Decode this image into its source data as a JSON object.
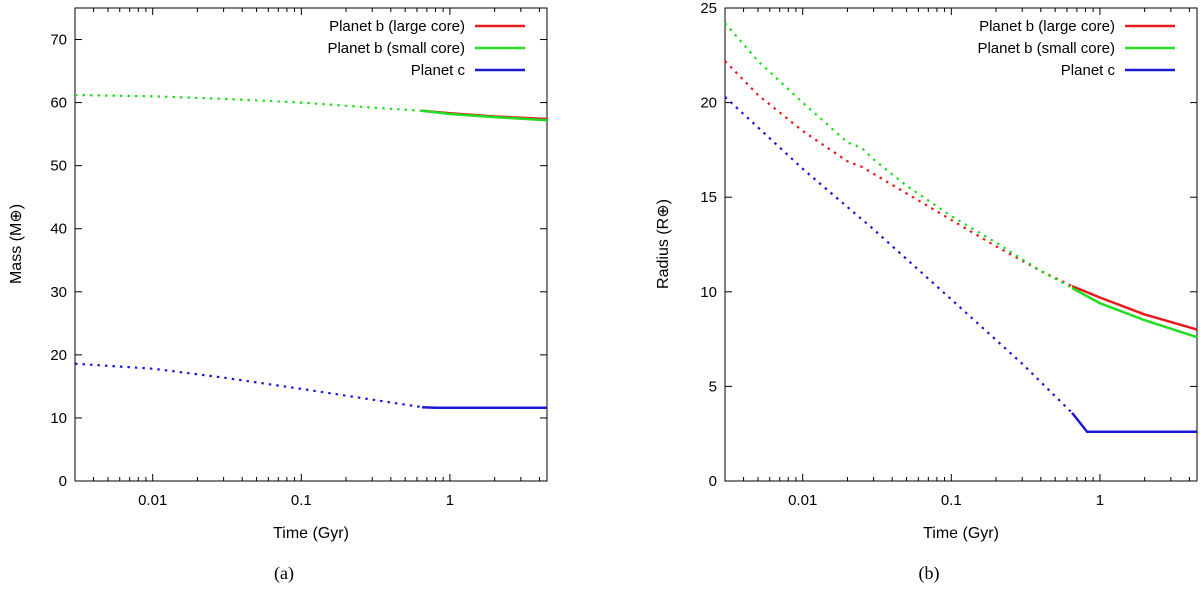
{
  "chart_data": [
    {
      "type": "line",
      "panel": "a",
      "caption": "(a)",
      "xlabel": "Time (Gyr)",
      "ylabel": "Mass (M⊕)",
      "xscale": "log",
      "xlim": [
        0.003,
        4.5
      ],
      "ylim": [
        0,
        75
      ],
      "xticks": [
        {
          "value": 0.01,
          "label": "0.01"
        },
        {
          "value": 0.1,
          "label": "0.1"
        },
        {
          "value": 1,
          "label": "1"
        }
      ],
      "yticks": [
        0,
        10,
        20,
        30,
        40,
        50,
        60,
        70
      ],
      "legend_position": "top-right",
      "series": [
        {
          "name": "Planet b (large core)",
          "color": "#e41a1c",
          "dotted": [],
          "solid": [
            [
              0.65,
              58.7
            ],
            [
              1,
              58.3
            ],
            [
              2,
              57.8
            ],
            [
              4.5,
              57.4
            ]
          ]
        },
        {
          "name": "Planet b (small core)",
          "color": "#22dd22",
          "dotted": [
            [
              0.003,
              61.2
            ],
            [
              0.01,
              61.0
            ],
            [
              0.03,
              60.6
            ],
            [
              0.1,
              60.0
            ],
            [
              0.3,
              59.2
            ],
            [
              0.65,
              58.7
            ]
          ],
          "solid": [
            [
              0.65,
              58.7
            ],
            [
              1,
              58.2
            ],
            [
              2,
              57.7
            ],
            [
              4.5,
              57.2
            ]
          ]
        },
        {
          "name": "Planet c",
          "color": "#1a1ad6",
          "dotted": [
            [
              0.003,
              18.6
            ],
            [
              0.01,
              17.8
            ],
            [
              0.03,
              16.4
            ],
            [
              0.1,
              14.6
            ],
            [
              0.3,
              12.9
            ],
            [
              0.65,
              11.7
            ]
          ],
          "solid": [
            [
              0.65,
              11.7
            ],
            [
              0.8,
              11.6
            ],
            [
              1,
              11.6
            ],
            [
              4.5,
              11.6
            ]
          ]
        }
      ]
    },
    {
      "type": "line",
      "panel": "b",
      "caption": "(b)",
      "xlabel": "Time (Gyr)",
      "ylabel": "Radius (R⊕)",
      "xscale": "log",
      "xlim": [
        0.003,
        4.5
      ],
      "ylim": [
        0,
        25
      ],
      "xticks": [
        {
          "value": 0.01,
          "label": "0.01"
        },
        {
          "value": 0.1,
          "label": "0.1"
        },
        {
          "value": 1,
          "label": "1"
        }
      ],
      "yticks": [
        0,
        5,
        10,
        15,
        20,
        25
      ],
      "legend_position": "top-right",
      "series": [
        {
          "name": "Planet b (large core)",
          "color": "#e41a1c",
          "dotted": [
            [
              0.003,
              22.2
            ],
            [
              0.005,
              20.4
            ],
            [
              0.01,
              18.5
            ],
            [
              0.02,
              16.9
            ],
            [
              0.025,
              16.6
            ],
            [
              0.05,
              15.2
            ],
            [
              0.1,
              13.8
            ],
            [
              0.2,
              12.4
            ],
            [
              0.4,
              11.1
            ],
            [
              0.65,
              10.3
            ]
          ],
          "solid": [
            [
              0.65,
              10.3
            ],
            [
              1,
              9.7
            ],
            [
              2,
              8.8
            ],
            [
              4.5,
              8.0
            ]
          ]
        },
        {
          "name": "Planet b (small core)",
          "color": "#22dd22",
          "dotted": [
            [
              0.003,
              24.2
            ],
            [
              0.005,
              22.2
            ],
            [
              0.01,
              20.0
            ],
            [
              0.02,
              17.9
            ],
            [
              0.025,
              17.6
            ],
            [
              0.03,
              17.0
            ],
            [
              0.05,
              15.6
            ],
            [
              0.1,
              14.0
            ],
            [
              0.2,
              12.6
            ],
            [
              0.4,
              11.1
            ],
            [
              0.65,
              10.2
            ]
          ],
          "solid": [
            [
              0.65,
              10.2
            ],
            [
              1,
              9.4
            ],
            [
              2,
              8.5
            ],
            [
              4.5,
              7.6
            ]
          ]
        },
        {
          "name": "Planet c",
          "color": "#1a1ad6",
          "dotted": [
            [
              0.003,
              20.3
            ],
            [
              0.01,
              16.5
            ],
            [
              0.03,
              13.3
            ],
            [
              0.1,
              9.6
            ],
            [
              0.3,
              6.2
            ],
            [
              0.65,
              3.6
            ]
          ],
          "solid": [
            [
              0.65,
              3.6
            ],
            [
              0.82,
              2.6
            ],
            [
              1,
              2.6
            ],
            [
              4.5,
              2.6
            ]
          ]
        }
      ]
    }
  ]
}
